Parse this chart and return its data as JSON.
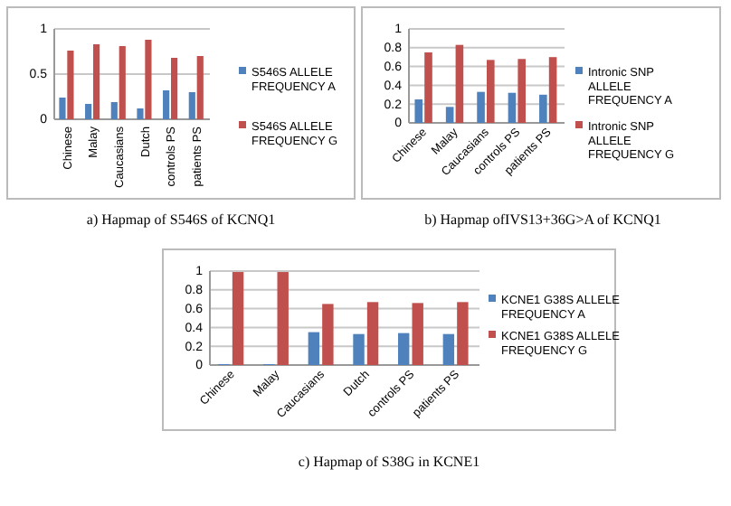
{
  "chart_data": [
    {
      "type": "bar",
      "title": "a) Hapmap of S546S of KCNQ1",
      "categories": [
        "Chinese",
        "Malay",
        "Caucasians",
        "Dutch",
        "controls PS",
        "patients PS"
      ],
      "series": [
        {
          "name": "S546S ALLELE FREQUENCY A",
          "color": "#4f81bd",
          "values": [
            0.24,
            0.17,
            0.19,
            0.12,
            0.32,
            0.3
          ]
        },
        {
          "name": "S546S ALLELE FREQUENCY G",
          "color": "#c0504d",
          "values": [
            0.76,
            0.83,
            0.81,
            0.88,
            0.68,
            0.7
          ]
        }
      ],
      "ylim": [
        0,
        1
      ],
      "yticks": [
        0,
        0.5,
        1
      ],
      "grid": "y",
      "legend": "right"
    },
    {
      "type": "bar",
      "title": "b) Hapmap ofIVS13+36G>A of KCNQ1",
      "categories": [
        "Chinese",
        "Malay",
        "Caucasians",
        "controls PS",
        "patients PS"
      ],
      "series": [
        {
          "name": "Intronic SNP ALLELE FREQUENCY A",
          "color": "#4f81bd",
          "values": [
            0.25,
            0.17,
            0.33,
            0.32,
            0.3
          ]
        },
        {
          "name": "Intronic SNP ALLELE FREQUENCY G",
          "color": "#c0504d",
          "values": [
            0.75,
            0.83,
            0.67,
            0.68,
            0.7
          ]
        }
      ],
      "ylim": [
        0,
        1
      ],
      "yticks": [
        0,
        0.2,
        0.4,
        0.6,
        0.8,
        1
      ],
      "grid": "y",
      "legend": "right"
    },
    {
      "type": "bar",
      "title": "c) Hapmap of S38G in KCNE1",
      "categories": [
        "Chinese",
        "Malay",
        "Caucasians",
        "Dutch",
        "controls PS",
        "patients PS"
      ],
      "series": [
        {
          "name": "KCNE1 G38S ALLELE FREQUENCY A",
          "color": "#4f81bd",
          "values": [
            0.01,
            0.01,
            0.35,
            0.33,
            0.34,
            0.33
          ]
        },
        {
          "name": "KCNE1 G38S ALLELE FREQUENCY G",
          "color": "#c0504d",
          "values": [
            0.99,
            0.99,
            0.65,
            0.67,
            0.66,
            0.67
          ]
        }
      ],
      "ylim": [
        0,
        1
      ],
      "yticks": [
        0,
        0.2,
        0.4,
        0.6,
        0.8,
        1
      ],
      "grid": "y",
      "legend": "right"
    }
  ]
}
